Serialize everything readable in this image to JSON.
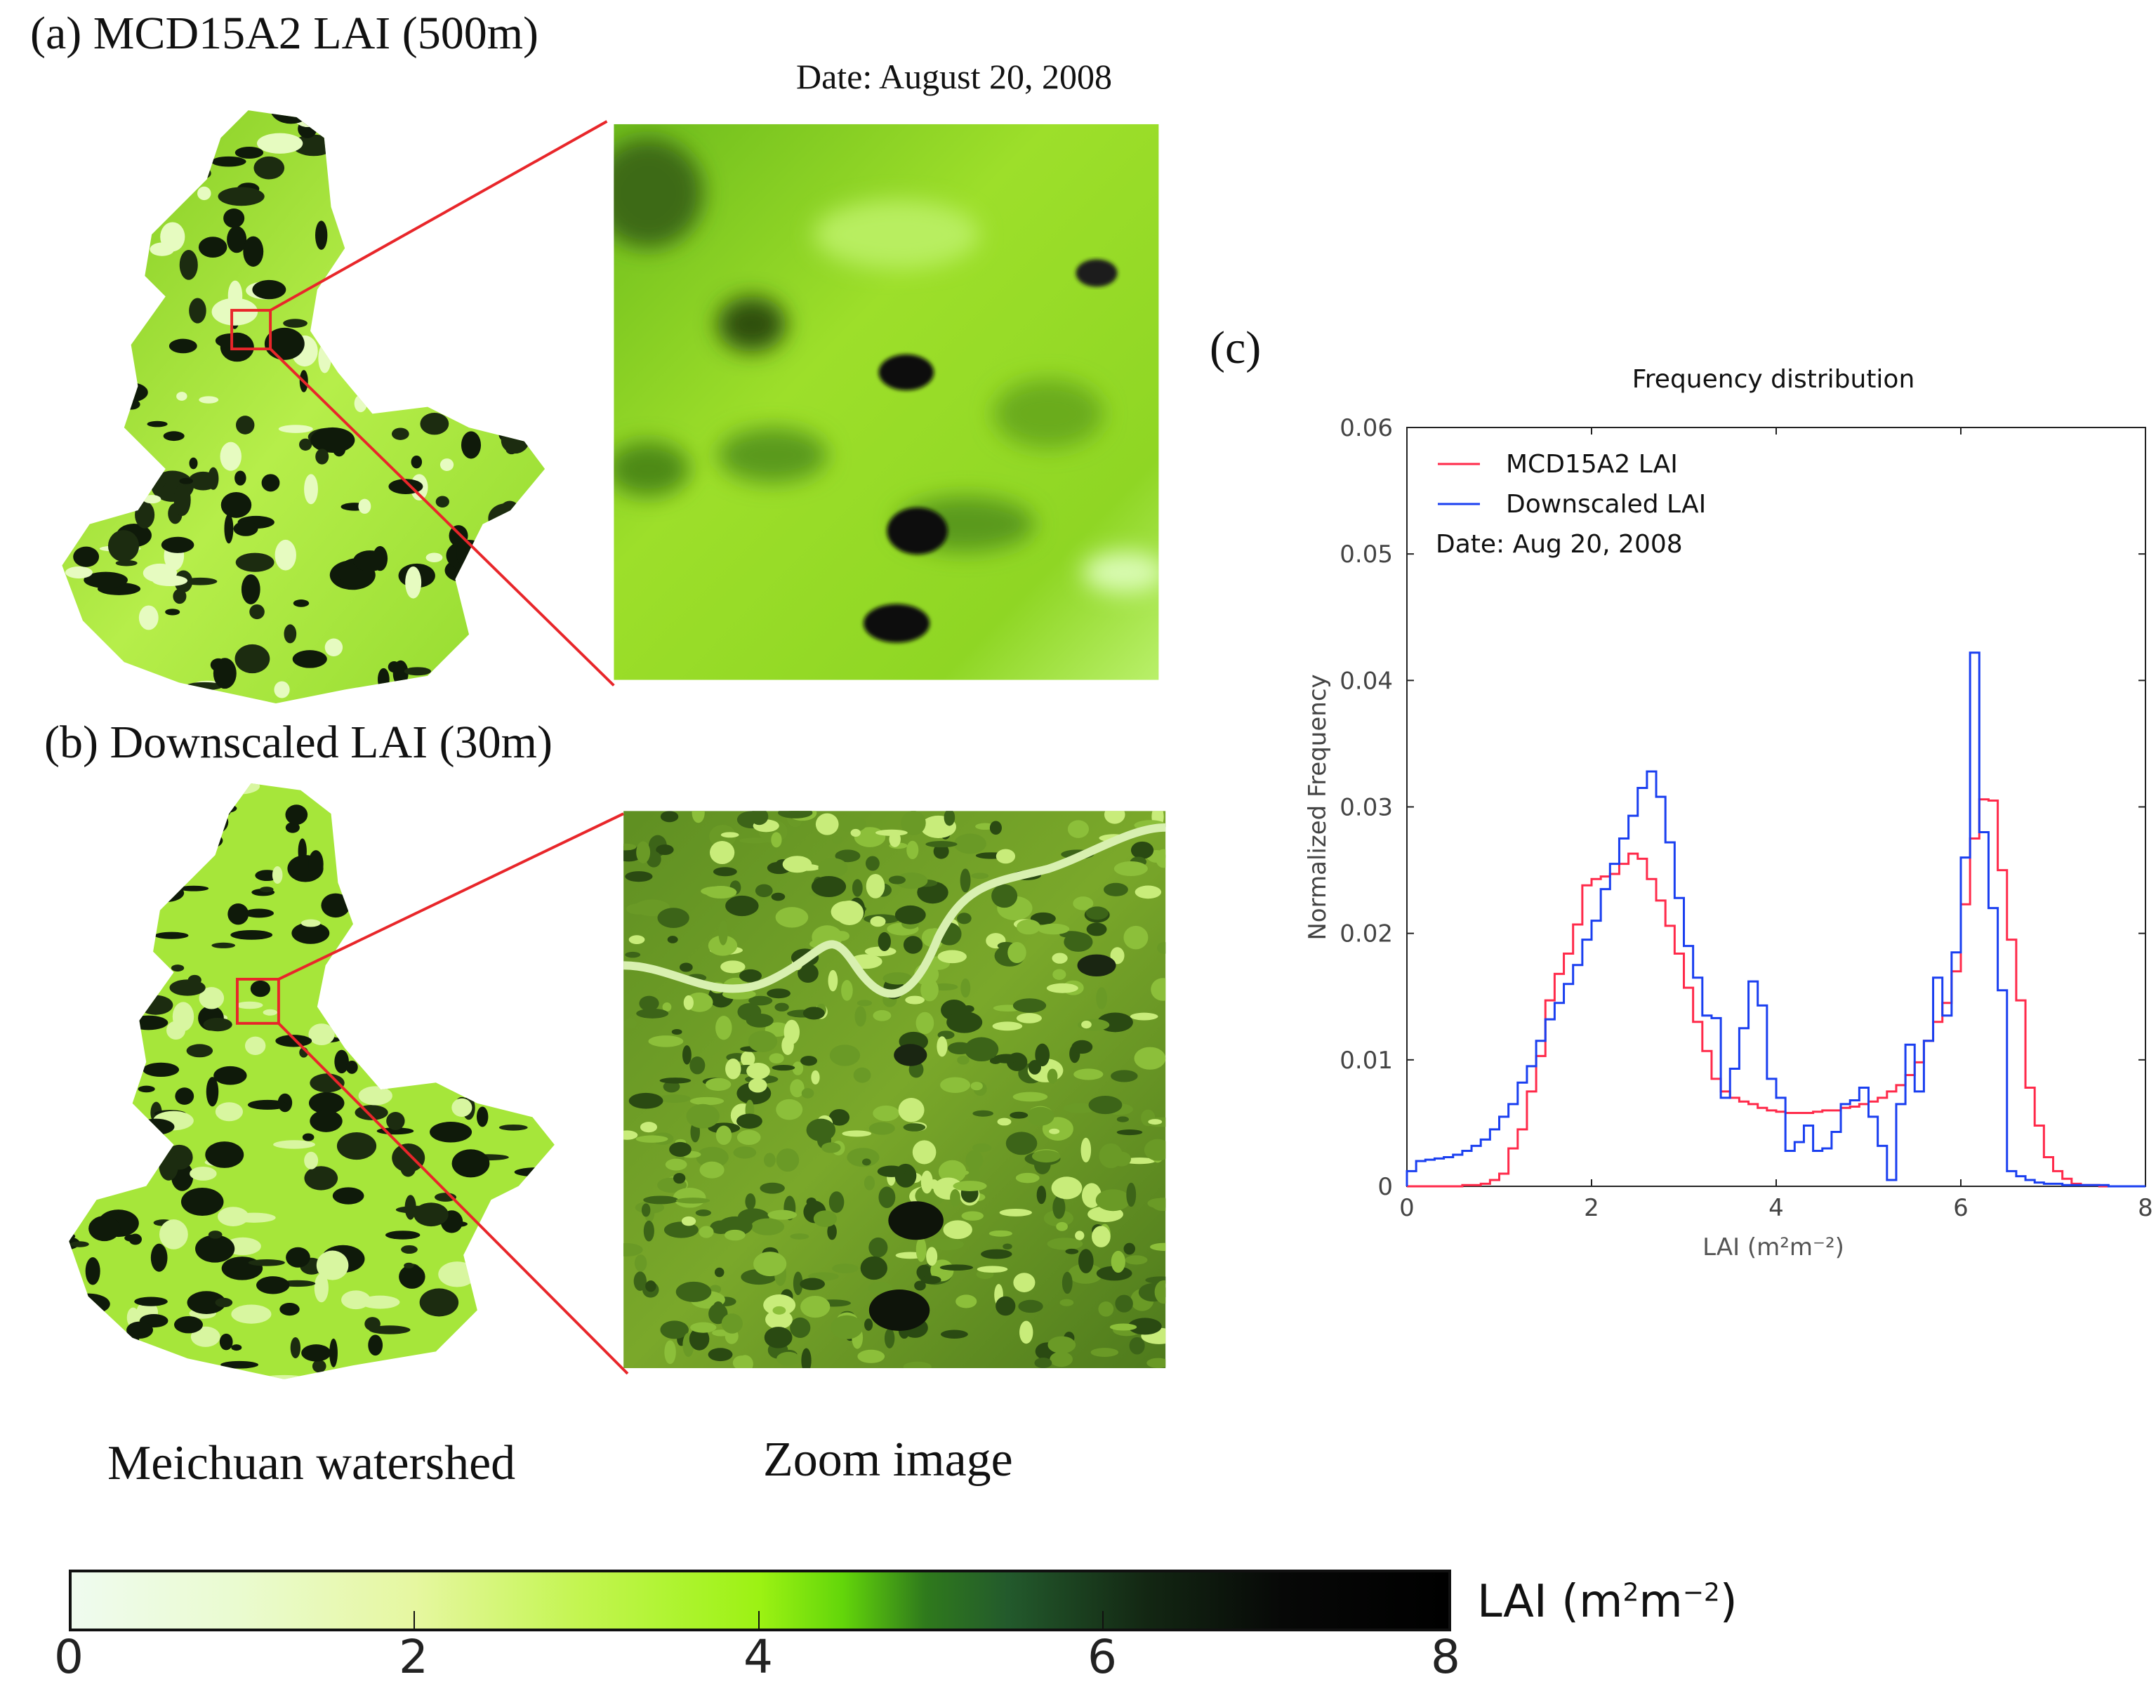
{
  "panels": {
    "a_title": "(a) MCD15A2 LAI (500m)",
    "date": "Date: August 20, 2008",
    "b_title": "(b) Downscaled LAI (30m)",
    "c_title": "(c)",
    "watershed_caption": "Meichuan watershed",
    "zoom_caption": "Zoom image"
  },
  "colorbar": {
    "label_base": "LAI (m",
    "label_sup1": "2",
    "label_mid": "m",
    "label_sup2": "−2",
    "label_end": ")",
    "ticks": [
      "0",
      "2",
      "4",
      "6",
      "8"
    ],
    "range": [
      0,
      8
    ],
    "colors": [
      "#effbef",
      "#e6f7a0",
      "#9cf213",
      "#2f7a1c",
      "#000000"
    ]
  },
  "chart_data": {
    "type": "line",
    "style": "step histogram",
    "title": "Frequency distribution",
    "xlabel": "LAI (m²m⁻²)",
    "ylabel": "Normalized Frequency",
    "xlim": [
      0,
      8
    ],
    "ylim": [
      0,
      0.06
    ],
    "xticks": [
      "0",
      "2",
      "4",
      "6",
      "8"
    ],
    "yticks": [
      "0",
      "0.01",
      "0.02",
      "0.03",
      "0.04",
      "0.05",
      "0.06"
    ],
    "grid": false,
    "legend_position": "top-left",
    "annotation": "Date: Aug 20, 2008",
    "bin_width": 0.1,
    "x": [
      0.0,
      0.1,
      0.2,
      0.3,
      0.4,
      0.5,
      0.6,
      0.7,
      0.8,
      0.9,
      1.0,
      1.1,
      1.2,
      1.3,
      1.4,
      1.5,
      1.6,
      1.7,
      1.8,
      1.9,
      2.0,
      2.1,
      2.2,
      2.3,
      2.4,
      2.5,
      2.6,
      2.7,
      2.8,
      2.9,
      3.0,
      3.1,
      3.2,
      3.3,
      3.4,
      3.5,
      3.6,
      3.7,
      3.8,
      3.9,
      4.0,
      4.1,
      4.2,
      4.3,
      4.4,
      4.5,
      4.6,
      4.7,
      4.8,
      4.9,
      5.0,
      5.1,
      5.2,
      5.3,
      5.4,
      5.5,
      5.6,
      5.7,
      5.8,
      5.9,
      6.0,
      6.1,
      6.2,
      6.3,
      6.4,
      6.5,
      6.6,
      6.7,
      6.8,
      6.9,
      7.0,
      7.1,
      7.2,
      7.3,
      7.4,
      7.5,
      7.6,
      7.7,
      7.8,
      7.9
    ],
    "series": [
      {
        "name": "MCD15A2 LAI",
        "color": "#ff2a4a",
        "values": [
          0,
          0,
          0,
          0,
          0,
          0,
          0.0001,
          0.0001,
          0.0002,
          0.0005,
          0.001,
          0.003,
          0.0045,
          0.0075,
          0.0103,
          0.0147,
          0.0168,
          0.0184,
          0.0207,
          0.0238,
          0.0243,
          0.0245,
          0.0247,
          0.0255,
          0.0263,
          0.0259,
          0.0243,
          0.0226,
          0.0206,
          0.0184,
          0.0157,
          0.013,
          0.0107,
          0.0085,
          0.0075,
          0.007,
          0.0067,
          0.0065,
          0.0062,
          0.006,
          0.0059,
          0.0058,
          0.0058,
          0.0058,
          0.0059,
          0.006,
          0.006,
          0.0062,
          0.0063,
          0.0065,
          0.0067,
          0.007,
          0.0075,
          0.008,
          0.0088,
          0.0098,
          0.0115,
          0.013,
          0.0145,
          0.017,
          0.0223,
          0.0275,
          0.0306,
          0.0305,
          0.025,
          0.0195,
          0.0147,
          0.0078,
          0.0048,
          0.0023,
          0.0012,
          0.0006,
          0.0002,
          0.0001,
          0.0001,
          0,
          0,
          0,
          0,
          0
        ]
      },
      {
        "name": "Downscaled LAI",
        "color": "#1a3ff0",
        "values": [
          0.0012,
          0.002,
          0.0021,
          0.0022,
          0.0023,
          0.0025,
          0.0028,
          0.0032,
          0.0037,
          0.0045,
          0.0055,
          0.0065,
          0.0082,
          0.0095,
          0.0115,
          0.0132,
          0.0145,
          0.016,
          0.0175,
          0.0195,
          0.021,
          0.0235,
          0.0255,
          0.0275,
          0.0293,
          0.0315,
          0.0328,
          0.0308,
          0.0272,
          0.0228,
          0.019,
          0.0165,
          0.0135,
          0.0133,
          0.007,
          0.0093,
          0.0125,
          0.0162,
          0.0143,
          0.0085,
          0.007,
          0.0028,
          0.0035,
          0.0048,
          0.0028,
          0.003,
          0.0043,
          0.0065,
          0.0068,
          0.0078,
          0.0055,
          0.0032,
          0.0005,
          0.0065,
          0.0112,
          0.0075,
          0.0115,
          0.0165,
          0.0135,
          0.0185,
          0.026,
          0.0422,
          0.028,
          0.022,
          0.0155,
          0.0012,
          0.0008,
          0.0005,
          0.0003,
          0.0002,
          0.0002,
          0.0001,
          0.0001,
          0.0001,
          0.0001,
          0.0001,
          0,
          0,
          0,
          0
        ]
      }
    ]
  }
}
